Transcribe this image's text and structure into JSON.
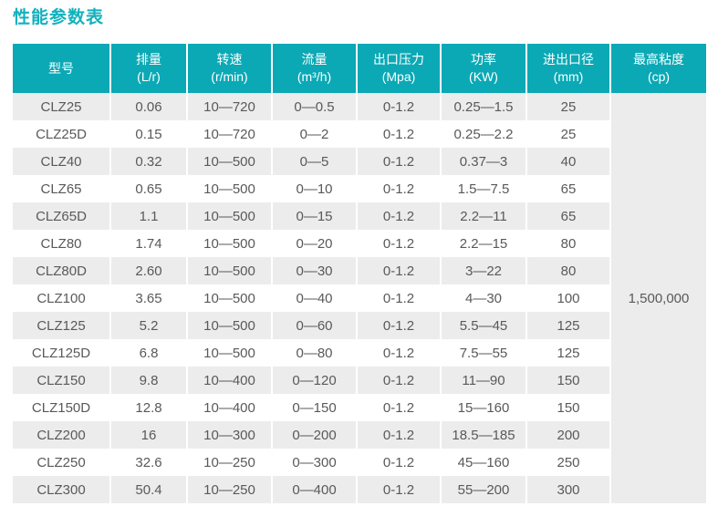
{
  "page": {
    "title": "性能参数表",
    "accent_color": "#12b1bd",
    "header_bg_color": "#0ba9b5",
    "stripe_bg_color": "#ececec",
    "cell_text_color": "#58595b"
  },
  "table": {
    "columns": [
      {
        "name": "型号",
        "unit": ""
      },
      {
        "name": "排量",
        "unit": "(L/r)"
      },
      {
        "name": "转速",
        "unit": "(r/min)"
      },
      {
        "name": "流量",
        "unit": "(m³/h)"
      },
      {
        "name": "出口压力",
        "unit": "(Mpa)"
      },
      {
        "name": "功率",
        "unit": "(KW)"
      },
      {
        "name": "进出口径",
        "unit": "(mm)"
      },
      {
        "name": "最高粘度",
        "unit": "(cp)"
      }
    ],
    "max_viscosity": "1,500,000",
    "rows": [
      [
        "CLZ25",
        "0.06",
        "10—720",
        "0—0.5",
        "0-1.2",
        "0.25—1.5",
        "25"
      ],
      [
        "CLZ25D",
        "0.15",
        "10—720",
        "0—2",
        "0-1.2",
        "0.25—2.2",
        "25"
      ],
      [
        "CLZ40",
        "0.32",
        "10—500",
        "0—5",
        "0-1.2",
        "0.37—3",
        "40"
      ],
      [
        "CLZ65",
        "0.65",
        "10—500",
        "0—10",
        "0-1.2",
        "1.5—7.5",
        "65"
      ],
      [
        "CLZ65D",
        "1.1",
        "10—500",
        "0—15",
        "0-1.2",
        "2.2—11",
        "65"
      ],
      [
        "CLZ80",
        "1.74",
        "10—500",
        "0—20",
        "0-1.2",
        "2.2—15",
        "80"
      ],
      [
        "CLZ80D",
        "2.60",
        "10—500",
        "0—30",
        "0-1.2",
        "3—22",
        "80"
      ],
      [
        "CLZ100",
        "3.65",
        "10—500",
        "0—40",
        "0-1.2",
        "4—30",
        "100"
      ],
      [
        "CLZ125",
        "5.2",
        "10—500",
        "0—60",
        "0-1.2",
        "5.5—45",
        "125"
      ],
      [
        "CLZ125D",
        "6.8",
        "10—500",
        "0—80",
        "0-1.2",
        "7.5—55",
        "125"
      ],
      [
        "CLZ150",
        "9.8",
        "10—400",
        "0—120",
        "0-1.2",
        "11—90",
        "150"
      ],
      [
        "CLZ150D",
        "12.8",
        "10—400",
        "0—150",
        "0-1.2",
        "15—160",
        "150"
      ],
      [
        "CLZ200",
        "16",
        "10—300",
        "0—200",
        "0-1.2",
        "18.5—185",
        "200"
      ],
      [
        "CLZ250",
        "32.6",
        "10—250",
        "0—300",
        "0-1.2",
        "45—160",
        "250"
      ],
      [
        "CLZ300",
        "50.4",
        "10—250",
        "0—400",
        "0-1.2",
        "55—200",
        "300"
      ]
    ]
  }
}
